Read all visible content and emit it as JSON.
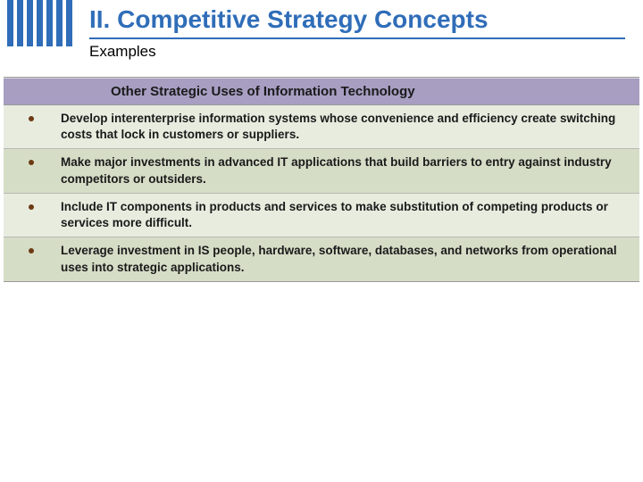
{
  "header": {
    "title": "II.  Competitive Strategy Concepts",
    "subtitle": "Examples",
    "bar_color": "#2f6db8",
    "bar_count": 7
  },
  "table": {
    "header": "Other Strategic Uses of Information Technology",
    "header_bg": "#a79ec2",
    "row_odd_bg": "#e8ecdf",
    "row_even_bg": "#d6ddc7",
    "bullet_color": "#6b3a14",
    "rows": [
      "Develop interenterprise information systems whose convenience and efficiency create switching costs that lock in customers or suppliers.",
      "Make major investments in advanced IT applications that build barriers to entry against industry competitors or outsiders.",
      "Include IT components in products and services to make substitution of competing products or services more difficult.",
      "Leverage investment in IS people, hardware, software, databases, and networks from operational uses into strategic applications."
    ]
  }
}
